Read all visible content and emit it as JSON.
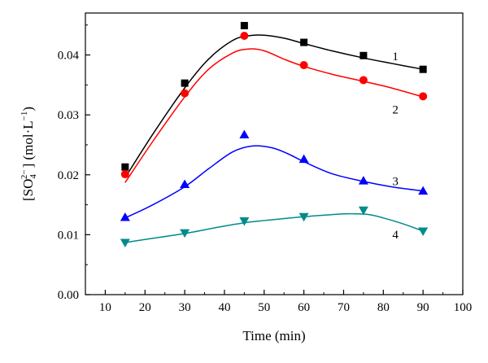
{
  "chart_data": {
    "type": "scatter",
    "xlabel": "Time (min)",
    "ylabel": "[SO4 2−] (mol·L−1)",
    "ylabel_parts": {
      "open": "[SO",
      "sub": "4",
      "sup": "2−",
      "close": "] (mol·L",
      "unit_sup": "−1",
      "end": ")"
    },
    "xlim": [
      5,
      100
    ],
    "ylim": [
      0.0,
      0.047
    ],
    "x_ticks": [
      10,
      20,
      30,
      40,
      50,
      60,
      70,
      80,
      90,
      100
    ],
    "x_tick_labels": [
      "10",
      "20",
      "30",
      "40",
      "50",
      "60",
      "70",
      "80",
      "90",
      "100"
    ],
    "y_ticks": [
      0.0,
      0.01,
      0.02,
      0.03,
      0.04
    ],
    "y_tick_labels": [
      "0.00",
      "0.01",
      "0.02",
      "0.03",
      "0.04"
    ],
    "grid": false,
    "series": [
      {
        "label": "1",
        "marker": "square",
        "color": "#000000",
        "x": [
          15,
          30,
          45,
          60,
          75,
          90
        ],
        "y": [
          0.0213,
          0.0353,
          0.0449,
          0.0421,
          0.0399,
          0.0376
        ],
        "fit_x": [
          15,
          22,
          30,
          36,
          42,
          46,
          50,
          55,
          60,
          67,
          75,
          82,
          90
        ],
        "fit_y": [
          0.0195,
          0.0268,
          0.0345,
          0.0393,
          0.0424,
          0.0432,
          0.0433,
          0.0428,
          0.0419,
          0.0407,
          0.0395,
          0.0386,
          0.0376
        ]
      },
      {
        "label": "2",
        "marker": "circle",
        "color": "#ff0000",
        "x": [
          15,
          30,
          45,
          60,
          75,
          90
        ],
        "y": [
          0.0201,
          0.0336,
          0.0432,
          0.0383,
          0.0358,
          0.0331
        ],
        "fit_x": [
          15,
          22,
          30,
          36,
          42,
          46,
          50,
          55,
          60,
          67,
          75,
          82,
          90
        ],
        "fit_y": [
          0.0187,
          0.0256,
          0.033,
          0.0376,
          0.0403,
          0.041,
          0.0407,
          0.0393,
          0.0381,
          0.0368,
          0.0356,
          0.0345,
          0.033
        ]
      },
      {
        "label": "3",
        "marker": "triangle-up",
        "color": "#0000ff",
        "x": [
          15,
          30,
          45,
          60,
          75,
          90
        ],
        "y": [
          0.0129,
          0.0184,
          0.0267,
          0.0226,
          0.019,
          0.0173
        ],
        "fit_x": [
          15,
          22,
          30,
          36,
          42,
          47,
          52,
          56,
          60,
          67,
          75,
          82,
          90
        ],
        "fit_y": [
          0.0128,
          0.015,
          0.018,
          0.021,
          0.0238,
          0.0248,
          0.0245,
          0.0235,
          0.0222,
          0.0202,
          0.0189,
          0.018,
          0.0173
        ]
      },
      {
        "label": "4",
        "marker": "triangle-down",
        "color": "#008b8b",
        "x": [
          15,
          30,
          45,
          60,
          75,
          90
        ],
        "y": [
          0.0087,
          0.0103,
          0.0123,
          0.013,
          0.0141,
          0.0106
        ],
        "fit_x": [
          15,
          22,
          30,
          38,
          45,
          52,
          60,
          66,
          71,
          76,
          80,
          85,
          90
        ],
        "fit_y": [
          0.0087,
          0.0094,
          0.0102,
          0.0112,
          0.012,
          0.0125,
          0.013,
          0.0133,
          0.0135,
          0.0134,
          0.0128,
          0.0118,
          0.0106
        ]
      }
    ]
  }
}
